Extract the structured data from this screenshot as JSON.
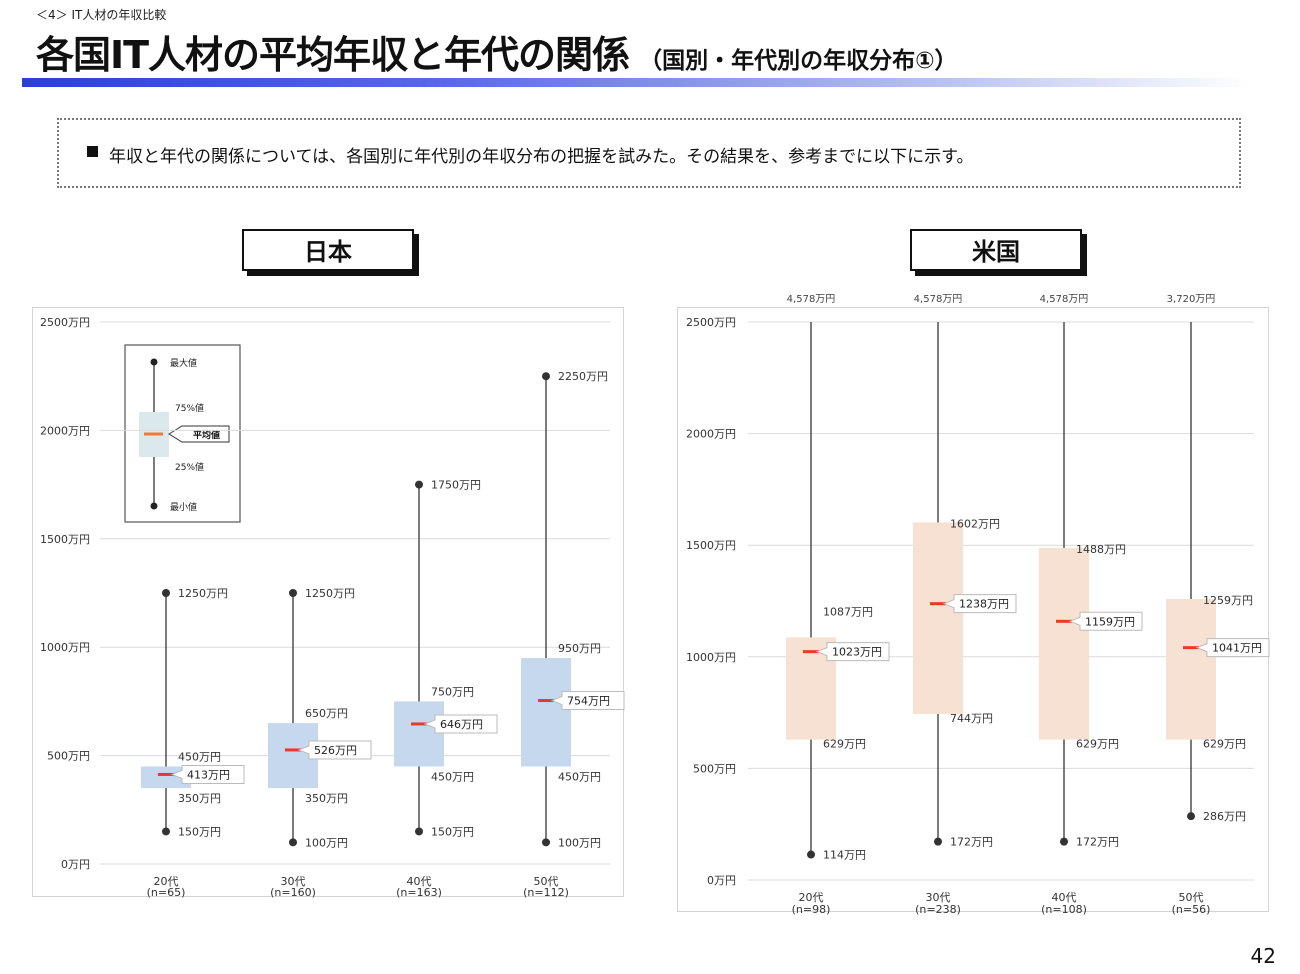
{
  "header": {
    "crumb": "＜4＞ IT人材の年収比較",
    "title": "各国IT人材の平均年収と年代の関係",
    "subtitle": "（国別・年代別の年収分布①）"
  },
  "note": "年収と年代の関係については、各国別に年代別の年収分布の把握を試みた。その結果を、参考までに以下に示す。",
  "page_number": "42",
  "colors": {
    "accent": "#2b3fd6",
    "japan_box": "#c5d8ee",
    "us_box": "#f7e1d2",
    "mean_mark": "#e8392c",
    "legend_mean": "#f07a3a"
  },
  "legend": {
    "max": "最大値",
    "p75": "75%値",
    "mean": "平均値",
    "p25": "25%値",
    "min": "最小値"
  },
  "chart_data": [
    {
      "type": "box",
      "title": "日本",
      "y_tick_labels": [
        "0万円",
        "500万円",
        "1000万円",
        "1500万円",
        "2000万円",
        "2500万円"
      ],
      "ylim": [
        0,
        2500
      ],
      "grid": true,
      "categories": [
        "20代",
        "30代",
        "40代",
        "50代"
      ],
      "n_labels": [
        "(n=65)",
        "(n=160)",
        "(n=163)",
        "(n=112)"
      ],
      "min": [
        150,
        100,
        150,
        100
      ],
      "p25": [
        350,
        350,
        450,
        450
      ],
      "mean": [
        413,
        526,
        646,
        754
      ],
      "p75": [
        450,
        650,
        750,
        950
      ],
      "max": [
        1250,
        1250,
        1750,
        2250
      ],
      "labels": {
        "min": [
          "150万円",
          "100万円",
          "150万円",
          "100万円"
        ],
        "p25": [
          "350万円",
          "350万円",
          "450万円",
          "450万円"
        ],
        "mean": [
          "413万円",
          "526万円",
          "646万円",
          "754万円"
        ],
        "p75": [
          "450万円",
          "650万円",
          "750万円",
          "950万円"
        ],
        "max": [
          "1250万円",
          "1250万円",
          "1750万円",
          "2250万円"
        ]
      }
    },
    {
      "type": "box",
      "title": "米国",
      "y_tick_labels": [
        "0万円",
        "500万円",
        "1000万円",
        "1500万円",
        "2000万円",
        "2500万円"
      ],
      "ylim": [
        0,
        2500
      ],
      "grid": true,
      "categories": [
        "20代",
        "30代",
        "40代",
        "50代"
      ],
      "n_labels": [
        "(n=98)",
        "(n=238)",
        "(n=108)",
        "(n=56)"
      ],
      "min": [
        114,
        172,
        172,
        286
      ],
      "p25": [
        629,
        744,
        629,
        629
      ],
      "mean": [
        1023,
        1238,
        1159,
        1041
      ],
      "p75": [
        1087,
        1602,
        1488,
        1259
      ],
      "max": [
        4578,
        4578,
        4578,
        3720
      ],
      "labels": {
        "min": [
          "114万円",
          "172万円",
          "172万円",
          "286万円"
        ],
        "p25": [
          "629万円",
          "744万円",
          "629万円",
          "629万円"
        ],
        "mean": [
          "1023万円",
          "1238万円",
          "1159万円",
          "1041万円"
        ],
        "p75": [
          "1087万円",
          "1602万円",
          "1488万円",
          "1259万円"
        ],
        "max": [
          "4,578万円",
          "4,578万円",
          "4,578万円",
          "3,720万円"
        ]
      }
    }
  ]
}
